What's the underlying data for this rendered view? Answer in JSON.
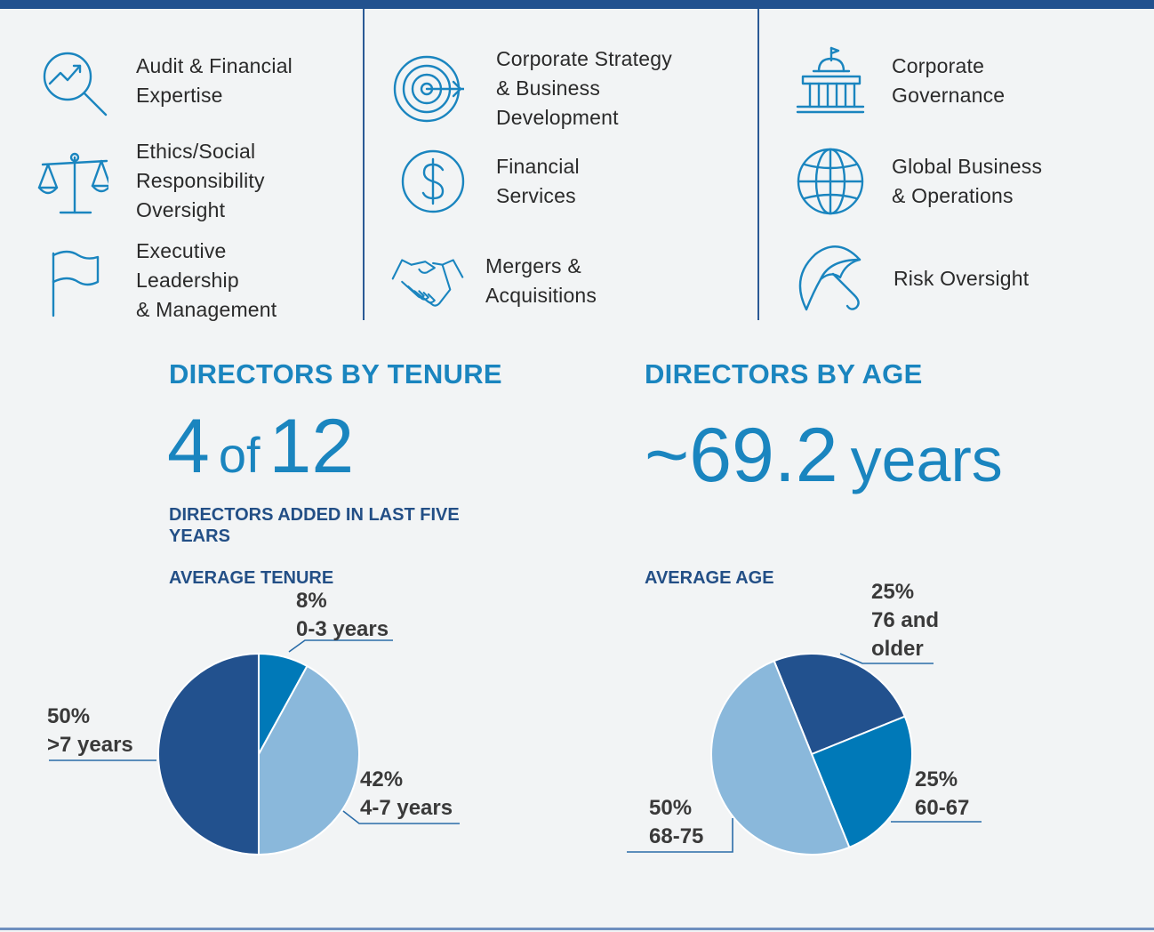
{
  "colors": {
    "accent": "#1a85bf",
    "navy": "#22518e",
    "dark_slice": "#22518e",
    "mid_slice": "#0079b8",
    "light_slice": "#8ab8db"
  },
  "skills": {
    "col1": [
      {
        "icon": "magnifier-chart-icon",
        "label": "Audit & Financial\nExpertise"
      },
      {
        "icon": "scales-icon",
        "label": "Ethics/Social\nResponsibility\nOversight"
      },
      {
        "icon": "flag-icon",
        "label": "Executive\nLeadership\n& Management"
      }
    ],
    "col2": [
      {
        "icon": "target-icon",
        "label": "Corporate Strategy\n& Business\nDevelopment"
      },
      {
        "icon": "dollar-icon",
        "label": "Financial\nServices"
      },
      {
        "icon": "handshake-icon",
        "label": "Mergers &\nAcquisitions"
      }
    ],
    "col3": [
      {
        "icon": "capitol-building-icon",
        "label": "Corporate\nGovernance"
      },
      {
        "icon": "globe-icon",
        "label": "Global Business\n& Operations"
      },
      {
        "icon": "umbrella-icon",
        "label": "Risk Oversight"
      }
    ]
  },
  "tenure": {
    "heading": "DIRECTORS BY TENURE",
    "big_main": "4",
    "big_of": "of",
    "big_total": "12",
    "added_caption": "DIRECTORS ADDED IN LAST FIVE\nYEARS",
    "average_caption": "AVERAGE TENURE"
  },
  "age": {
    "heading": "DIRECTORS BY AGE",
    "big_value": "~69.2",
    "big_unit": "years",
    "average_caption": "AVERAGE AGE"
  },
  "chart_data": [
    {
      "type": "pie",
      "title": "AVERAGE TENURE",
      "slices": [
        {
          "label": "0-3 years",
          "pct_label": "8%",
          "value": 8,
          "color": "#0079b8"
        },
        {
          "label": "4-7 years",
          "pct_label": "42%",
          "value": 42,
          "color": "#8ab8db"
        },
        {
          "label": ">7 years",
          "pct_label": "50%",
          "value": 50,
          "color": "#22518e"
        }
      ]
    },
    {
      "type": "pie",
      "title": "AVERAGE AGE",
      "slices": [
        {
          "label": "76 and\nolder",
          "pct_label": "25%",
          "value": 25,
          "color": "#22518e"
        },
        {
          "label": "60-67",
          "pct_label": "25%",
          "value": 25,
          "color": "#0079b8"
        },
        {
          "label": "68-75",
          "pct_label": "50%",
          "value": 50,
          "color": "#8ab8db"
        }
      ]
    }
  ]
}
